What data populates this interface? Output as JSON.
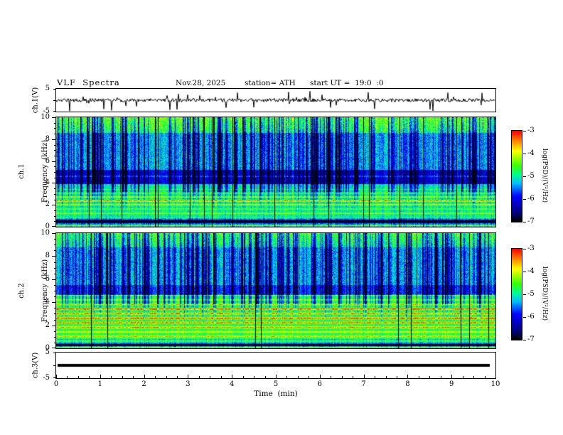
{
  "header": {
    "title": "VLF  Spectra",
    "date": "Nov.28, 2025",
    "station": "station= ATH",
    "start_ut": "start UT =  19:0  :0"
  },
  "x_axis": {
    "label": "Time  (min)",
    "range": [
      0,
      10
    ],
    "major_ticks": [
      0,
      1,
      2,
      3,
      4,
      5,
      6,
      7,
      8,
      9,
      10
    ]
  },
  "panels": {
    "ch1_wave": {
      "ylabel": "ch.1(V)",
      "ylim": [
        -5,
        5
      ],
      "ytick_labels": [
        "5",
        "-5"
      ]
    },
    "ch1_spec": {
      "ylabel_line1": "ch.1",
      "ylabel_line2": "Frequency  (kHz)",
      "ylim": [
        0,
        10
      ],
      "major_ticks": [
        0,
        2,
        4,
        6,
        8,
        10
      ]
    },
    "ch2_spec": {
      "ylabel_line1": "ch.2",
      "ylabel_line2": "Frequency  (kHz)",
      "ylim": [
        0,
        10
      ],
      "major_ticks": [
        0,
        2,
        4,
        6,
        8,
        10
      ]
    },
    "ch3_wave": {
      "ylabel": "ch.3(V)",
      "ylim": [
        -5,
        5
      ],
      "ytick_labels": [
        "5",
        "-5"
      ]
    }
  },
  "colorbar": {
    "label": "log(PSD)/(V²/Hz)",
    "ticks": [
      -3,
      -4,
      -5,
      -6,
      -7
    ],
    "range": [
      -7,
      -3
    ],
    "colormap": [
      "#000000",
      "#000082",
      "#0000ff",
      "#00beff",
      "#00ff8c",
      "#3cff00",
      "#ffff00",
      "#ff7800",
      "#ff0000"
    ]
  },
  "chart_data": [
    {
      "type": "line",
      "panel": "ch.1(V) time series",
      "ylabel": "ch.1(V)",
      "ylim": [
        -5,
        5
      ],
      "x_range_min": [
        0,
        10
      ],
      "description": "Noisy broadband signal centered near 0 V with dense impulsive spikes reaching roughly ±4 V throughout the entire 10-minute record."
    },
    {
      "type": "heatmap",
      "panel": "ch.1 spectrogram",
      "ylabel": "Frequency (kHz)",
      "ylim": [
        0,
        10
      ],
      "x_range_min": [
        0,
        10
      ],
      "z_label": "log(PSD)/(V²/Hz)",
      "z_range": [
        -7,
        -3
      ],
      "description": "Green/cyan background near -5 with dense vertical blue-to-black impulsive streaks (sferics) above ~3 kHz, a darker blue band near 4-5 kHz, brighter green-yellow speckle above ~8.5 kHz, yellow-orange horizontal emission lines below ~3.5 kHz (strongest near 2-3 kHz), and a dark band just above 0 kHz."
    },
    {
      "type": "heatmap",
      "panel": "ch.2 spectrogram",
      "ylabel": "Frequency (kHz)",
      "ylim": [
        0,
        10
      ],
      "x_range_min": [
        0,
        10
      ],
      "z_label": "log(PSD)/(V²/Hz)",
      "z_range": [
        -7,
        -3
      ],
      "description": "Similar dense vertical blue/black impulsive streaks above ~4 kHz; lower half brighter green with many strong yellow-to-orange horizontal lines between 0.5 and 4.5 kHz (strongest near 2.5-3.5 kHz approaching -3), and a dark band near 0.2 kHz."
    },
    {
      "type": "line",
      "panel": "ch.3(V) time series",
      "ylabel": "ch.3(V)",
      "ylim": [
        -5,
        5
      ],
      "x_range_min": [
        0,
        10
      ],
      "description": "Flat thick line at approximately 0 V for the entire record (inactive channel)."
    }
  ]
}
